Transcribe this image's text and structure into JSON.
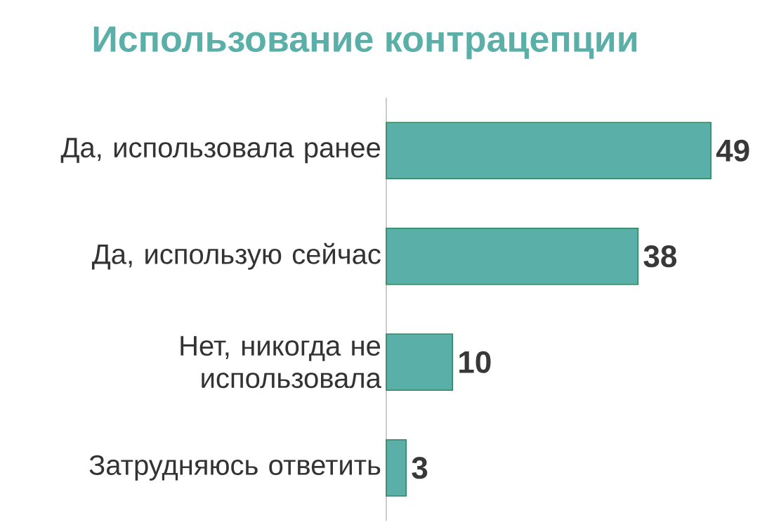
{
  "chart_data": {
    "type": "bar",
    "orientation": "horizontal",
    "title": "Использование контрацепции",
    "categories": [
      "Да, использовала ранее",
      "Да, использую сейчас",
      "Нет, никогда не использовала",
      "Затрудняюсь ответить"
    ],
    "values": [
      49,
      38,
      10,
      3
    ],
    "color": "#5aafa8",
    "data_labels": true
  }
}
